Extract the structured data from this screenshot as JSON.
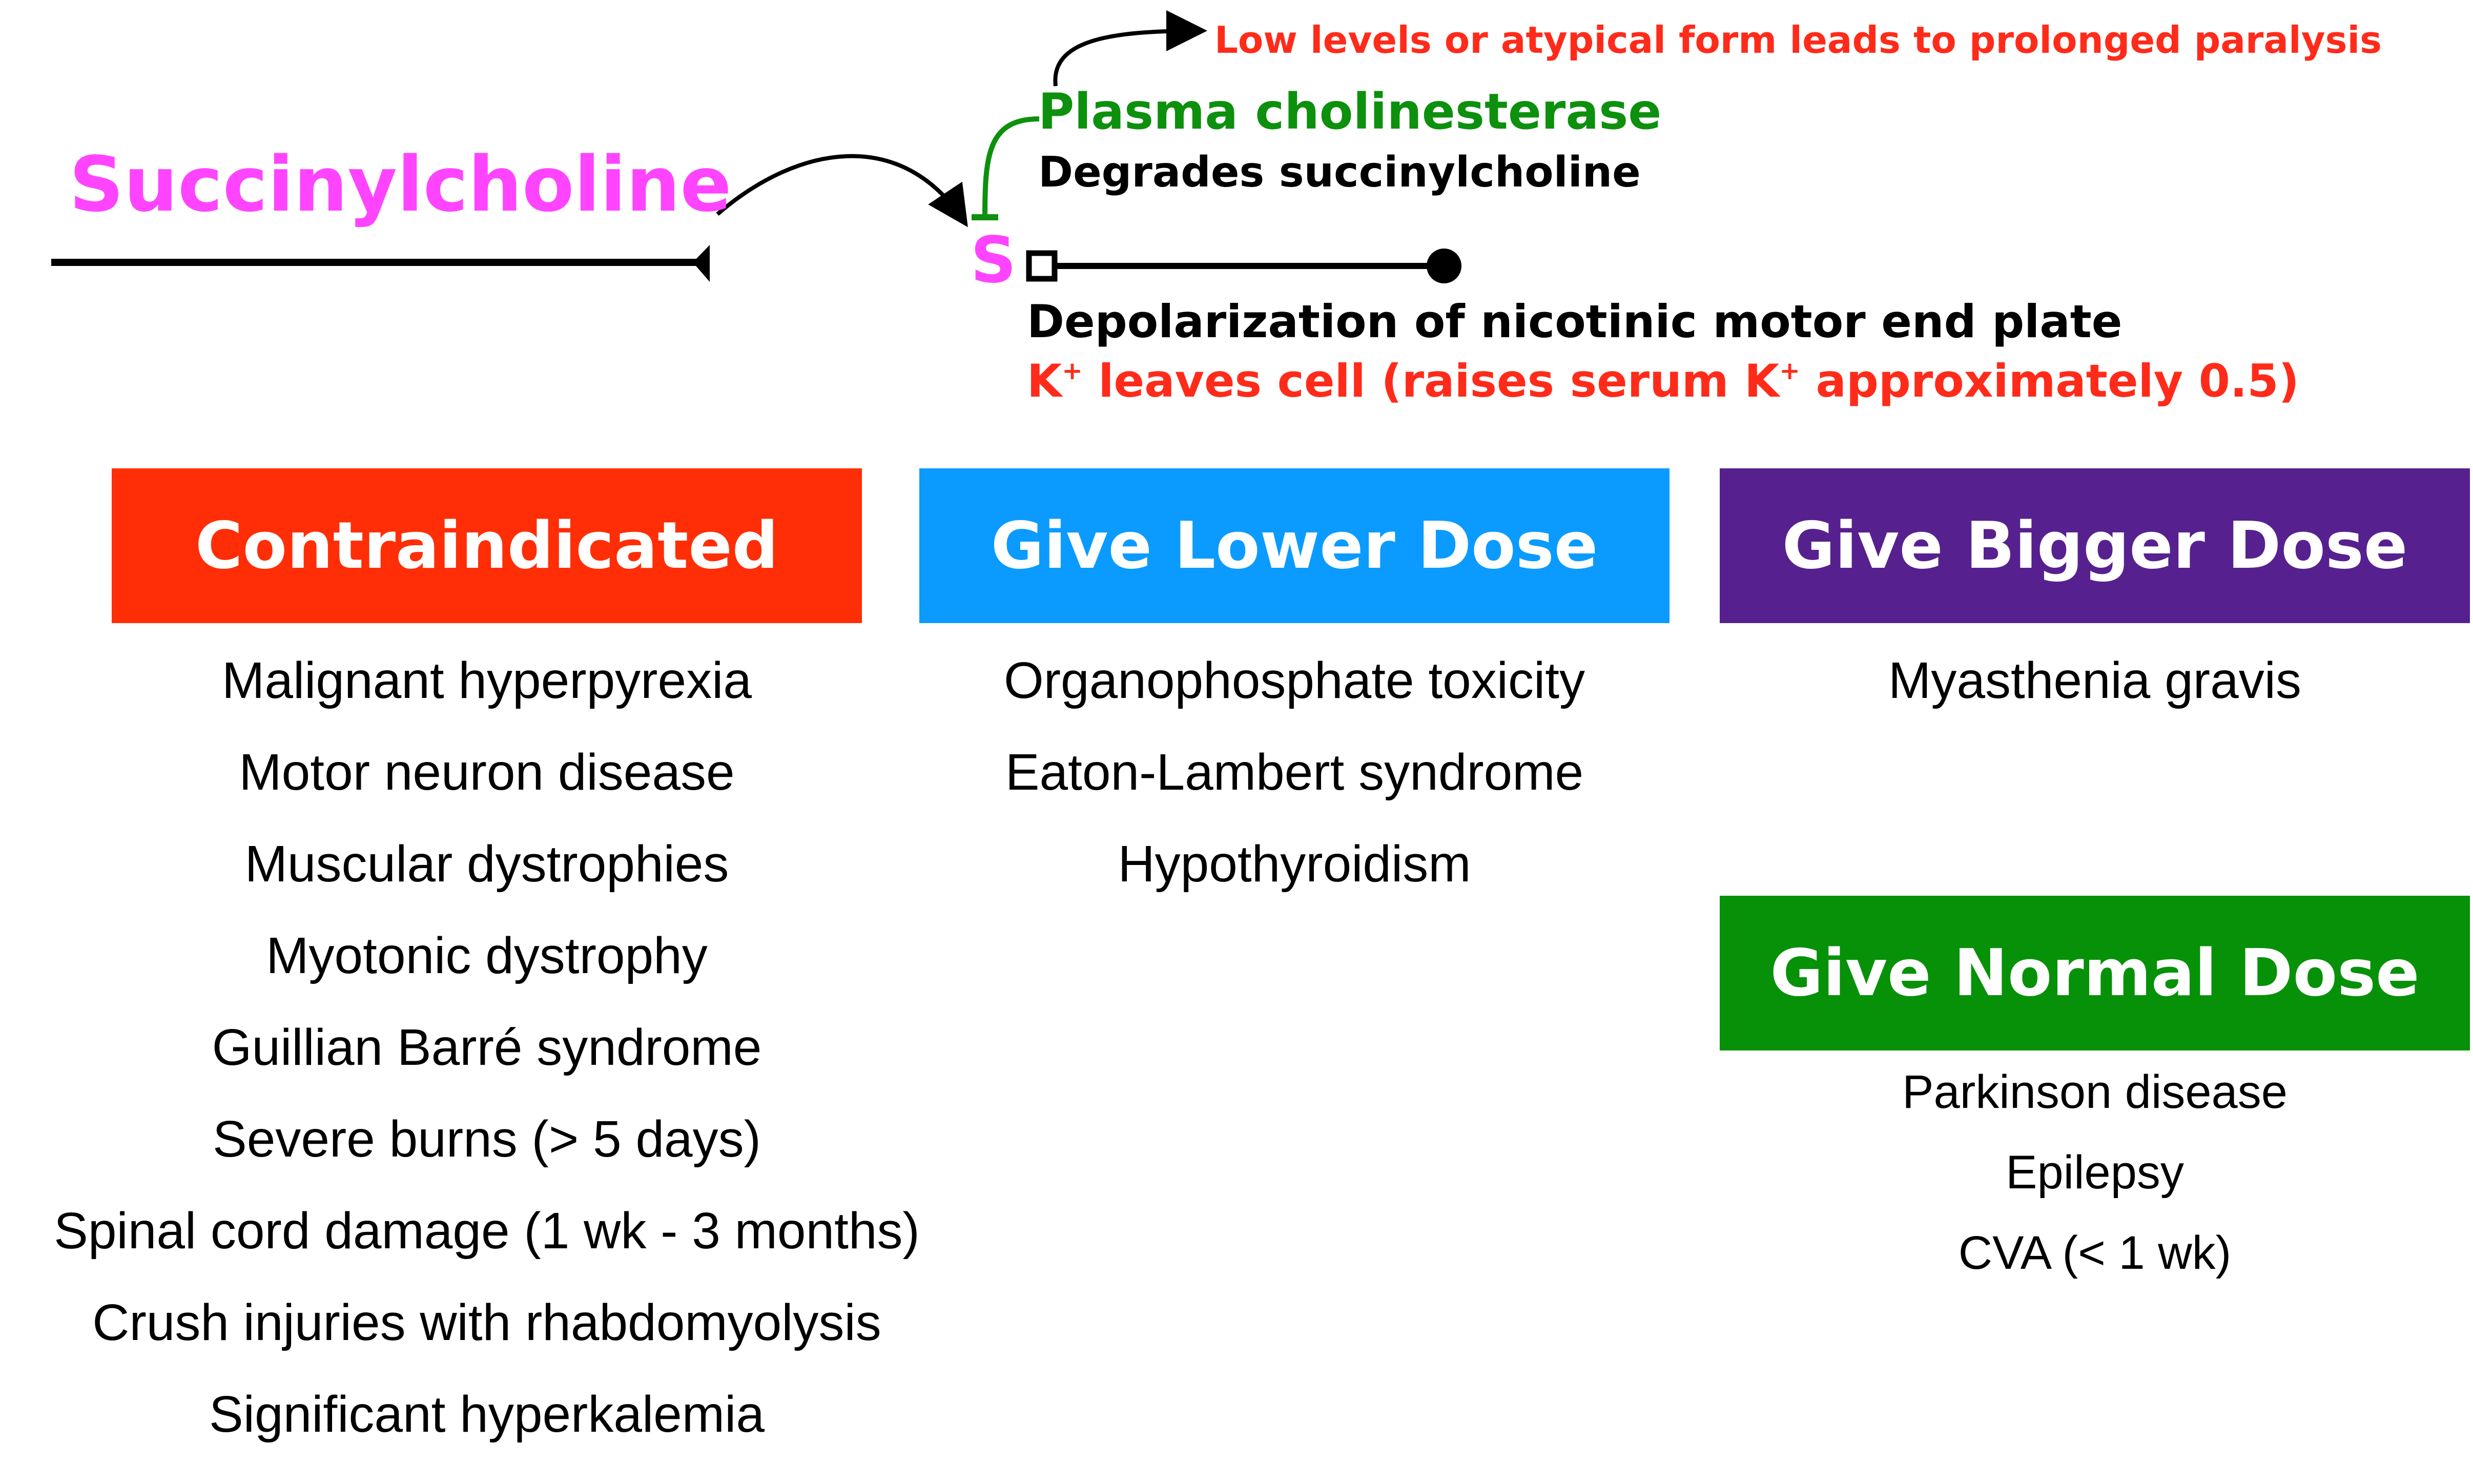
{
  "drug": {
    "name": "Succinylcholine",
    "receptor_label": "S",
    "color": "#ff44ff"
  },
  "enzyme": {
    "name": "Plasma cholinesterase",
    "description": "Degrades succinylcholine",
    "note": "Low levels or atypical form leads to prolonged paralysis",
    "name_color": "#0d900d",
    "note_color": "#ff2b1a"
  },
  "effect": {
    "main": "Depolarization of nicotinic motor end plate",
    "k_text_1": "K",
    "k_sup_1": "+",
    "k_text_2": " leaves cell (raises serum K",
    "k_sup_2": "+",
    "k_text_3": " approximately 0.5)",
    "k_color": "#ff2b1a"
  },
  "categories": [
    {
      "title": "Contraindicated",
      "color": "#ff2e06",
      "items": [
        "Malignant hyperpyrexia",
        "Motor neuron disease",
        "Muscular dystrophies",
        "Myotonic dystrophy",
        "Guillian Barré syndrome",
        "Severe burns (> 5 days)",
        "Spinal cord damage (1 wk - 3 months)",
        "Crush injuries with rhabdomyolysis",
        "Significant hyperkalemia"
      ]
    },
    {
      "title": "Give Lower Dose",
      "color": "#0b9bff",
      "items": [
        "Organophosphate toxicity",
        "Eaton-Lambert syndrome",
        "Hypothyroidism"
      ]
    },
    {
      "title": "Give Bigger Dose",
      "color": "#56218f",
      "items": [
        "Myasthenia gravis"
      ]
    },
    {
      "title": "Give Normal Dose",
      "color": "#079109",
      "items": [
        "Parkinson disease",
        "Epilepsy",
        "CVA (< 1 wk)"
      ]
    }
  ]
}
